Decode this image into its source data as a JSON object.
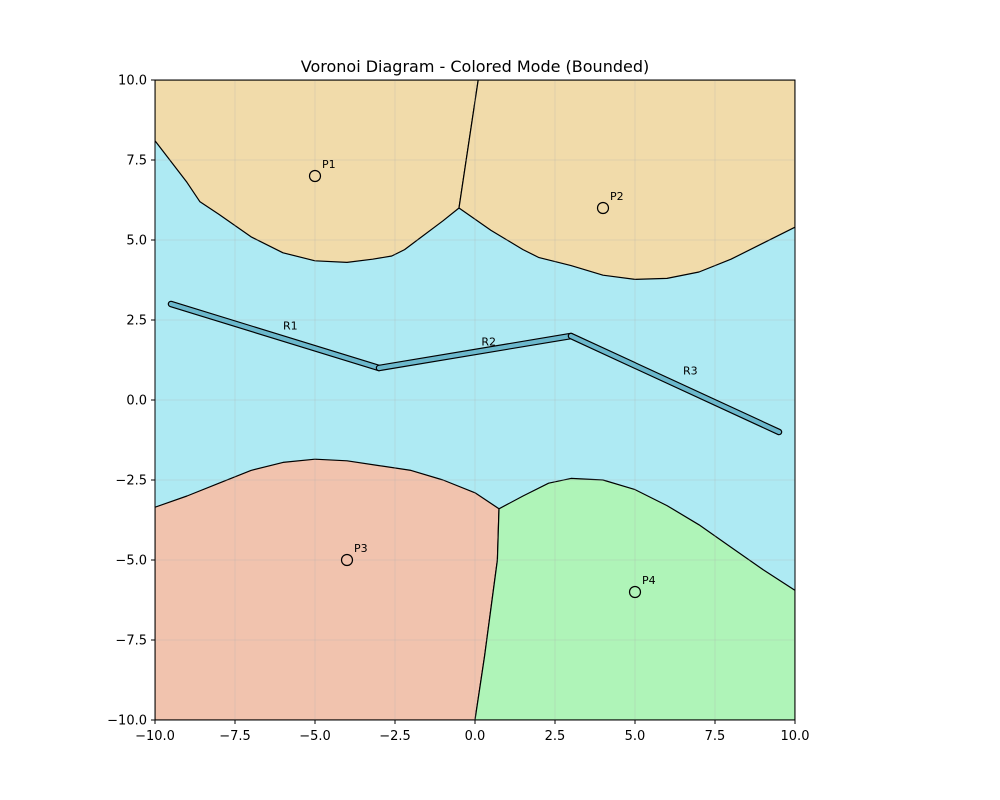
{
  "chart_data": {
    "type": "voronoi",
    "title": "Voronoi Diagram - Colored Mode (Bounded)",
    "xlim": [
      -10,
      10
    ],
    "ylim": [
      -10,
      10
    ],
    "grid": true,
    "x_ticks": [
      -10,
      -7.5,
      -5,
      -2.5,
      0,
      2.5,
      5,
      7.5,
      10
    ],
    "y_ticks": [
      -10,
      -7.5,
      -5,
      -2.5,
      0,
      2.5,
      5,
      7.5,
      10
    ],
    "x_tick_labels": [
      "−10.0",
      "−7.5",
      "−5.0",
      "−2.5",
      "0.0",
      "2.5",
      "5.0",
      "7.5",
      "10.0"
    ],
    "y_tick_labels": [
      "−10.0",
      "−7.5",
      "−5.0",
      "−2.5",
      "0.0",
      "2.5",
      "5.0",
      "7.5",
      "10.0"
    ],
    "background_region": {
      "name": "river",
      "color": "#aeeaf3"
    },
    "regions": [
      {
        "name": "region-p1",
        "color": "#f1dbaa",
        "polygon": [
          [
            -10,
            10
          ],
          [
            0.1,
            10
          ],
          [
            -0.5,
            6.0
          ],
          [
            -1.0,
            5.6
          ],
          [
            -1.8,
            5.0
          ],
          [
            -2.2,
            4.7
          ],
          [
            -2.6,
            4.5
          ],
          [
            -3.2,
            4.4
          ],
          [
            -4.0,
            4.3
          ],
          [
            -5.0,
            4.35
          ],
          [
            -6.0,
            4.6
          ],
          [
            -7.0,
            5.1
          ],
          [
            -8.0,
            5.8
          ],
          [
            -8.6,
            6.2
          ],
          [
            -9.0,
            6.8
          ],
          [
            -10,
            8.1
          ]
        ]
      },
      {
        "name": "region-p2",
        "color": "#f1dbaa",
        "polygon": [
          [
            0.1,
            10
          ],
          [
            10,
            10
          ],
          [
            10,
            5.4
          ],
          [
            9.0,
            4.9
          ],
          [
            8.0,
            4.4
          ],
          [
            7.0,
            4.0
          ],
          [
            6.0,
            3.8
          ],
          [
            5.0,
            3.77
          ],
          [
            4.0,
            3.9
          ],
          [
            3.0,
            4.2
          ],
          [
            2.0,
            4.45
          ],
          [
            1.5,
            4.7
          ],
          [
            0.5,
            5.3
          ],
          [
            -0.5,
            6.0
          ]
        ]
      },
      {
        "name": "region-p3",
        "color": "#f1c3ae",
        "polygon": [
          [
            -10,
            -10
          ],
          [
            0.0,
            -10
          ],
          [
            0.3,
            -8.0
          ],
          [
            0.5,
            -6.5
          ],
          [
            0.7,
            -5.0
          ],
          [
            0.75,
            -3.4
          ],
          [
            0.0,
            -2.9
          ],
          [
            -1.0,
            -2.5
          ],
          [
            -2.0,
            -2.2
          ],
          [
            -3.0,
            -2.05
          ],
          [
            -4.0,
            -1.9
          ],
          [
            -5.0,
            -1.85
          ],
          [
            -6.0,
            -1.95
          ],
          [
            -7.0,
            -2.2
          ],
          [
            -8.0,
            -2.6
          ],
          [
            -9.0,
            -3.0
          ],
          [
            -10,
            -3.35
          ]
        ]
      },
      {
        "name": "region-p4",
        "color": "#aff4b8",
        "polygon": [
          [
            0.0,
            -10
          ],
          [
            10,
            -10
          ],
          [
            10,
            -5.95
          ],
          [
            9.0,
            -5.3
          ],
          [
            8.0,
            -4.6
          ],
          [
            7.0,
            -3.9
          ],
          [
            6.0,
            -3.3
          ],
          [
            5.0,
            -2.8
          ],
          [
            4.0,
            -2.5
          ],
          [
            3.0,
            -2.45
          ],
          [
            2.3,
            -2.6
          ],
          [
            1.5,
            -3.0
          ],
          [
            0.75,
            -3.4
          ],
          [
            0.7,
            -5.0
          ],
          [
            0.5,
            -6.5
          ],
          [
            0.3,
            -8.0
          ]
        ]
      }
    ],
    "river_segments": [
      {
        "label": "R1",
        "from": [
          -9.5,
          3.0
        ],
        "to": [
          -3.0,
          1.0
        ],
        "label_pos": [
          -6.0,
          2.2
        ]
      },
      {
        "label": "R2",
        "from": [
          -3.0,
          1.0
        ],
        "to": [
          3.0,
          2.0
        ],
        "label_pos": [
          0.2,
          1.7
        ]
      },
      {
        "label": "R3",
        "from": [
          3.0,
          2.0
        ],
        "to": [
          9.5,
          -1.0
        ],
        "label_pos": [
          6.5,
          0.8
        ]
      }
    ],
    "river_color": "#6bb8cc",
    "points": [
      {
        "label": "P1",
        "x": -5,
        "y": 7,
        "color": "#f1dbaa"
      },
      {
        "label": "P2",
        "x": 4,
        "y": 6,
        "color": "#f1dbaa"
      },
      {
        "label": "P3",
        "x": -4,
        "y": -5,
        "color": "#f1c3ae"
      },
      {
        "label": "P4",
        "x": 5,
        "y": -6,
        "color": "#aff4b8"
      }
    ]
  }
}
